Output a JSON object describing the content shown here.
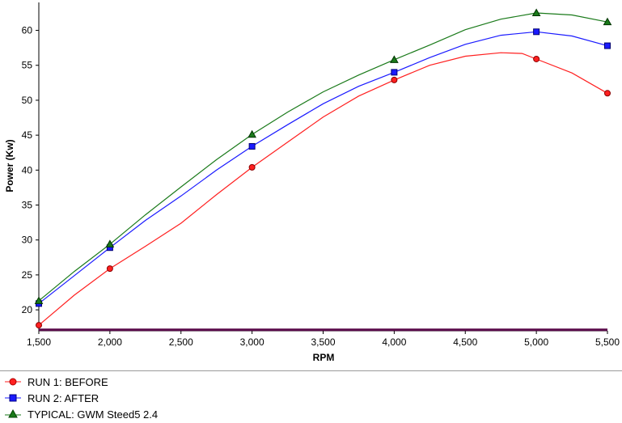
{
  "chart_data": {
    "type": "line",
    "xlabel": "RPM",
    "ylabel": "Power (Kw)",
    "xlim": [
      1500,
      5500
    ],
    "ylim": [
      17,
      64
    ],
    "x_ticks": [
      1500,
      2000,
      2500,
      3000,
      3500,
      4000,
      4500,
      5000,
      5500
    ],
    "x_tick_labels": [
      "1,500",
      "2,000",
      "2,500",
      "3,000",
      "3,500",
      "4,000",
      "4,500",
      "5,000",
      "5,500"
    ],
    "y_ticks": [
      20,
      25,
      30,
      35,
      40,
      45,
      50,
      55,
      60
    ],
    "y_tick_labels": [
      "20",
      "25",
      "30",
      "35",
      "40",
      "45",
      "50",
      "55",
      "60"
    ],
    "grid": false,
    "legend": "bottom",
    "series": [
      {
        "name": "RUN 1: BEFORE",
        "color": "#ff2020",
        "marker": "circle",
        "x": [
          1500,
          1750,
          2000,
          2250,
          2500,
          2750,
          3000,
          3250,
          3500,
          3750,
          4000,
          4250,
          4500,
          4750,
          4900,
          5000,
          5250,
          5500
        ],
        "y": [
          17.8,
          22.1,
          25.9,
          29.1,
          32.4,
          36.5,
          40.4,
          44.0,
          47.6,
          50.6,
          52.9,
          55.0,
          56.3,
          56.8,
          56.7,
          55.9,
          53.9,
          51.0
        ],
        "markers_x": [
          1500,
          2000,
          3000,
          4000,
          5000,
          5500
        ],
        "markers_y": [
          17.8,
          25.9,
          40.4,
          52.9,
          55.9,
          51.0
        ]
      },
      {
        "name": "RUN 2: AFTER",
        "color": "#1a1aff",
        "marker": "square",
        "x": [
          1500,
          1750,
          2000,
          2250,
          2500,
          2750,
          3000,
          3250,
          3500,
          3750,
          4000,
          4250,
          4500,
          4750,
          5000,
          5250,
          5500
        ],
        "y": [
          20.9,
          24.9,
          28.9,
          32.8,
          36.3,
          40.0,
          43.4,
          46.5,
          49.5,
          52.0,
          54.0,
          56.1,
          58.0,
          59.3,
          59.8,
          59.2,
          57.8
        ],
        "markers_x": [
          1500,
          2000,
          3000,
          4000,
          5000,
          5500
        ],
        "markers_y": [
          20.9,
          28.9,
          43.4,
          54.0,
          59.8,
          57.8
        ]
      },
      {
        "name": "TYPICAL: GWM Steed5 2.4",
        "color": "#1a7a1a",
        "marker": "triangle",
        "x": [
          1500,
          1750,
          2000,
          2250,
          2500,
          2750,
          3000,
          3250,
          3500,
          3750,
          4000,
          4250,
          4500,
          4750,
          5000,
          5250,
          5500
        ],
        "y": [
          21.3,
          25.5,
          29.4,
          33.6,
          37.6,
          41.5,
          45.1,
          48.3,
          51.2,
          53.6,
          55.8,
          57.9,
          60.1,
          61.6,
          62.5,
          62.2,
          61.2
        ],
        "markers_x": [
          1500,
          2000,
          3000,
          4000,
          5000,
          5500
        ],
        "markers_y": [
          21.3,
          29.4,
          45.1,
          55.8,
          62.5,
          61.2
        ]
      }
    ],
    "baseline": {
      "y": 17.15,
      "color": "#5a0a4a"
    }
  }
}
